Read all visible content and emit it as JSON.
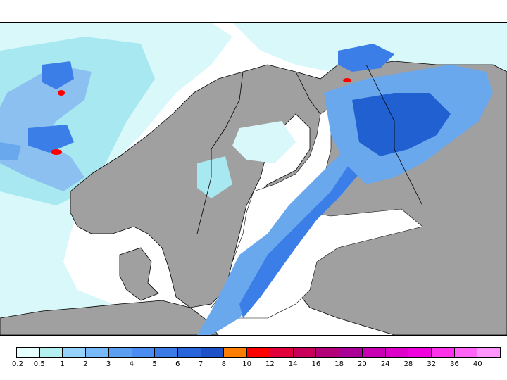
{
  "colors": {
    "sea": "#ffffff",
    "land": "#a0a0a0",
    "coast": "#000000",
    "precip_light": "#d8f8fa",
    "precip_mid": "#a8e8f0",
    "precip_blue_1": "#8cc0f0",
    "precip_blue_2": "#6aa8ee",
    "precip_blue_3": "#3c7ee8",
    "precip_blue_4": "#2060d0",
    "precip_peak": "#ff0000"
  },
  "legend": {
    "bins": [
      {
        "color": "#e6ffff"
      },
      {
        "color": "#b4f0f0"
      },
      {
        "color": "#96d2fa"
      },
      {
        "color": "#78b9fa"
      },
      {
        "color": "#5a9ff0"
      },
      {
        "color": "#4a8cf0"
      },
      {
        "color": "#3c7ae6"
      },
      {
        "color": "#2864dc"
      },
      {
        "color": "#1e50c8"
      },
      {
        "color": "#ff7d00"
      },
      {
        "color": "#ff0000"
      },
      {
        "color": "#e1003c"
      },
      {
        "color": "#c8005a"
      },
      {
        "color": "#b40078"
      },
      {
        "color": "#aa0096"
      },
      {
        "color": "#c800b4"
      },
      {
        "color": "#dc00c8"
      },
      {
        "color": "#f000dc"
      },
      {
        "color": "#ff32eb"
      },
      {
        "color": "#ff64f5"
      },
      {
        "color": "#ff96ff"
      }
    ],
    "labels": [
      "0.2",
      "0.5",
      "1",
      "2",
      "3",
      "4",
      "5",
      "6",
      "7",
      "8",
      "10",
      "12",
      "14",
      "16",
      "18",
      "20",
      "24",
      "28",
      "32",
      "36",
      "40"
    ]
  }
}
